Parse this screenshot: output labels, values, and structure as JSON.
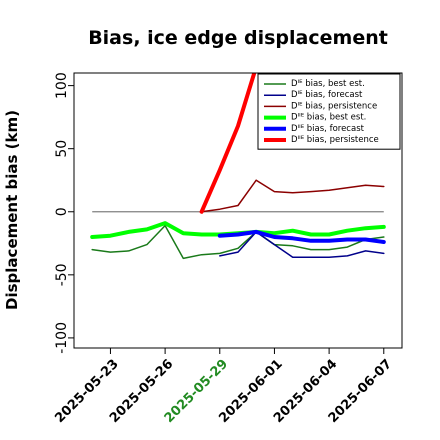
{
  "chart_data": {
    "type": "line",
    "title": "Bias, ice edge displacement",
    "ylabel": "Displacement bias (km)",
    "xlabel": "",
    "ylim": [
      -108,
      110
    ],
    "xlim": [
      "2025-05-21",
      "2025-06-08"
    ],
    "y_ticks": [
      -100,
      -50,
      0,
      50,
      100
    ],
    "x_ticks": [
      {
        "label": "2025-05-23",
        "date": "2025-05-23",
        "color": "#000000"
      },
      {
        "label": "2025-05-26",
        "date": "2025-05-26",
        "color": "#000000"
      },
      {
        "label": "2025-05-29",
        "date": "2025-05-29",
        "color": "#228b22"
      },
      {
        "label": "2025-06-01",
        "date": "2025-06-01",
        "color": "#000000"
      },
      {
        "label": "2025-06-04",
        "date": "2025-06-04",
        "color": "#000000"
      },
      {
        "label": "2025-06-07",
        "date": "2025-06-07",
        "color": "#000000"
      }
    ],
    "reference_line": {
      "y": 0,
      "from": "2025-05-22",
      "to": "2025-06-07",
      "color": "#808080"
    },
    "legend_position": "top-right",
    "grid": false,
    "series": [
      {
        "name": "Dᴵᴱ bias, best est.",
        "color": "#1a7a1a",
        "width": 1.5,
        "points": [
          [
            "2025-05-22",
            -30
          ],
          [
            "2025-05-23",
            -32
          ],
          [
            "2025-05-24",
            -31
          ],
          [
            "2025-05-25",
            -26
          ],
          [
            "2025-05-26",
            -11
          ],
          [
            "2025-05-27",
            -37
          ],
          [
            "2025-05-28",
            -34
          ],
          [
            "2025-05-29",
            -33
          ],
          [
            "2025-05-30",
            -29
          ],
          [
            "2025-05-31",
            -16
          ],
          [
            "2025-06-01",
            -26
          ],
          [
            "2025-06-02",
            -27
          ],
          [
            "2025-06-03",
            -30
          ],
          [
            "2025-06-04",
            -30
          ],
          [
            "2025-06-05",
            -28
          ],
          [
            "2025-06-06",
            -22
          ],
          [
            "2025-06-07",
            -20
          ]
        ]
      },
      {
        "name": "Dᴵᴱ bias, forecast",
        "color": "#00008b",
        "width": 1.5,
        "points": [
          [
            "2025-05-29",
            -35
          ],
          [
            "2025-05-30",
            -32
          ],
          [
            "2025-05-31",
            -16
          ],
          [
            "2025-06-01",
            -26
          ],
          [
            "2025-06-02",
            -36
          ],
          [
            "2025-06-03",
            -36
          ],
          [
            "2025-06-04",
            -36
          ],
          [
            "2025-06-05",
            -35
          ],
          [
            "2025-06-06",
            -31
          ],
          [
            "2025-06-07",
            -33
          ]
        ]
      },
      {
        "name": "Dᴵᴱ bias, persistence",
        "color": "#8b0000",
        "width": 1.5,
        "points": [
          [
            "2025-05-28",
            0
          ],
          [
            "2025-05-29",
            2
          ],
          [
            "2025-05-30",
            5
          ],
          [
            "2025-05-31",
            25
          ],
          [
            "2025-06-01",
            16
          ],
          [
            "2025-06-02",
            15
          ],
          [
            "2025-06-03",
            16
          ],
          [
            "2025-06-04",
            17
          ],
          [
            "2025-06-05",
            19
          ],
          [
            "2025-06-06",
            21
          ],
          [
            "2025-06-07",
            20
          ]
        ]
      },
      {
        "name": "Dᴵᴵᴱ bias, best est.",
        "color": "#00ff00",
        "width": 4,
        "points": [
          [
            "2025-05-22",
            -20
          ],
          [
            "2025-05-23",
            -19
          ],
          [
            "2025-05-24",
            -16
          ],
          [
            "2025-05-25",
            -14
          ],
          [
            "2025-05-26",
            -9
          ],
          [
            "2025-05-27",
            -17
          ],
          [
            "2025-05-28",
            -18
          ],
          [
            "2025-05-29",
            -18
          ],
          [
            "2025-05-30",
            -17
          ],
          [
            "2025-05-31",
            -16
          ],
          [
            "2025-06-01",
            -17
          ],
          [
            "2025-06-02",
            -15
          ],
          [
            "2025-06-03",
            -18
          ],
          [
            "2025-06-04",
            -18
          ],
          [
            "2025-06-05",
            -15
          ],
          [
            "2025-06-06",
            -13
          ],
          [
            "2025-06-07",
            -12
          ]
        ]
      },
      {
        "name": "Dᴵᴵᴱ bias, forecast",
        "color": "#0000ff",
        "width": 4,
        "points": [
          [
            "2025-05-29",
            -19
          ],
          [
            "2025-05-30",
            -18
          ],
          [
            "2025-05-31",
            -16
          ],
          [
            "2025-06-01",
            -20
          ],
          [
            "2025-06-02",
            -21
          ],
          [
            "2025-06-03",
            -23
          ],
          [
            "2025-06-04",
            -23
          ],
          [
            "2025-06-05",
            -22
          ],
          [
            "2025-06-06",
            -22
          ],
          [
            "2025-06-07",
            -24
          ]
        ]
      },
      {
        "name": "Dᴵᴵᴱ bias, persistence",
        "color": "#ff0000",
        "width": 4,
        "points": [
          [
            "2025-05-28",
            0
          ],
          [
            "2025-05-29",
            33
          ],
          [
            "2025-05-30",
            68
          ],
          [
            "2025-05-31",
            115
          ]
        ]
      }
    ]
  }
}
